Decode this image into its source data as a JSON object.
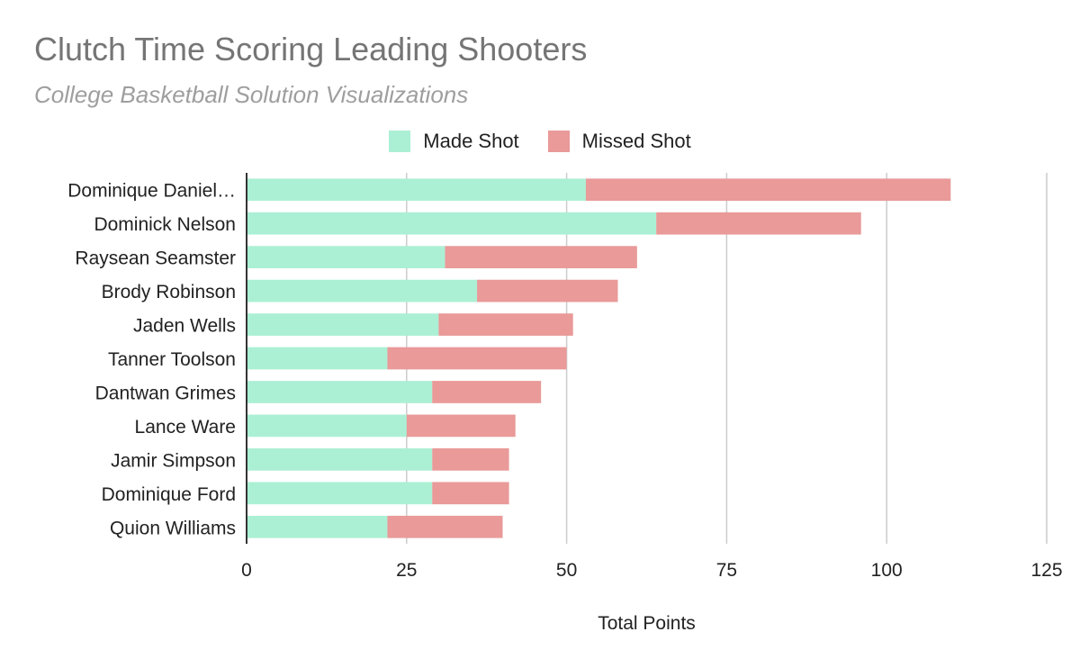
{
  "colors": {
    "made": "#abf0d4",
    "missed": "#e99a99",
    "grid": "#cccccc",
    "axis": "#333333"
  },
  "chart_data": {
    "type": "bar",
    "orientation": "horizontal",
    "stacked": true,
    "title": "Clutch Time Scoring Leading Shooters",
    "subtitle": "College Basketball Solution Visualizations",
    "xlabel": "Total Points",
    "ylabel": "",
    "xlim": [
      0,
      125
    ],
    "xticks": [
      0,
      25,
      50,
      75,
      100,
      125
    ],
    "grid": true,
    "legend_position": "top",
    "categories": [
      "Dominique Daniel…",
      "Dominick Nelson",
      "Raysean Seamster",
      "Brody Robinson",
      "Jaden Wells",
      "Tanner Toolson",
      "Dantwan Grimes",
      "Lance Ware",
      "Jamir Simpson",
      "Dominique Ford",
      "Quion Williams"
    ],
    "series": [
      {
        "name": "Made Shot",
        "color": "#abf0d4",
        "values": [
          53,
          64,
          31,
          36,
          30,
          22,
          29,
          25,
          29,
          29,
          22
        ]
      },
      {
        "name": "Missed Shot",
        "color": "#e99a99",
        "values": [
          57,
          32,
          30,
          22,
          21,
          28,
          17,
          17,
          12,
          12,
          18
        ]
      }
    ]
  }
}
